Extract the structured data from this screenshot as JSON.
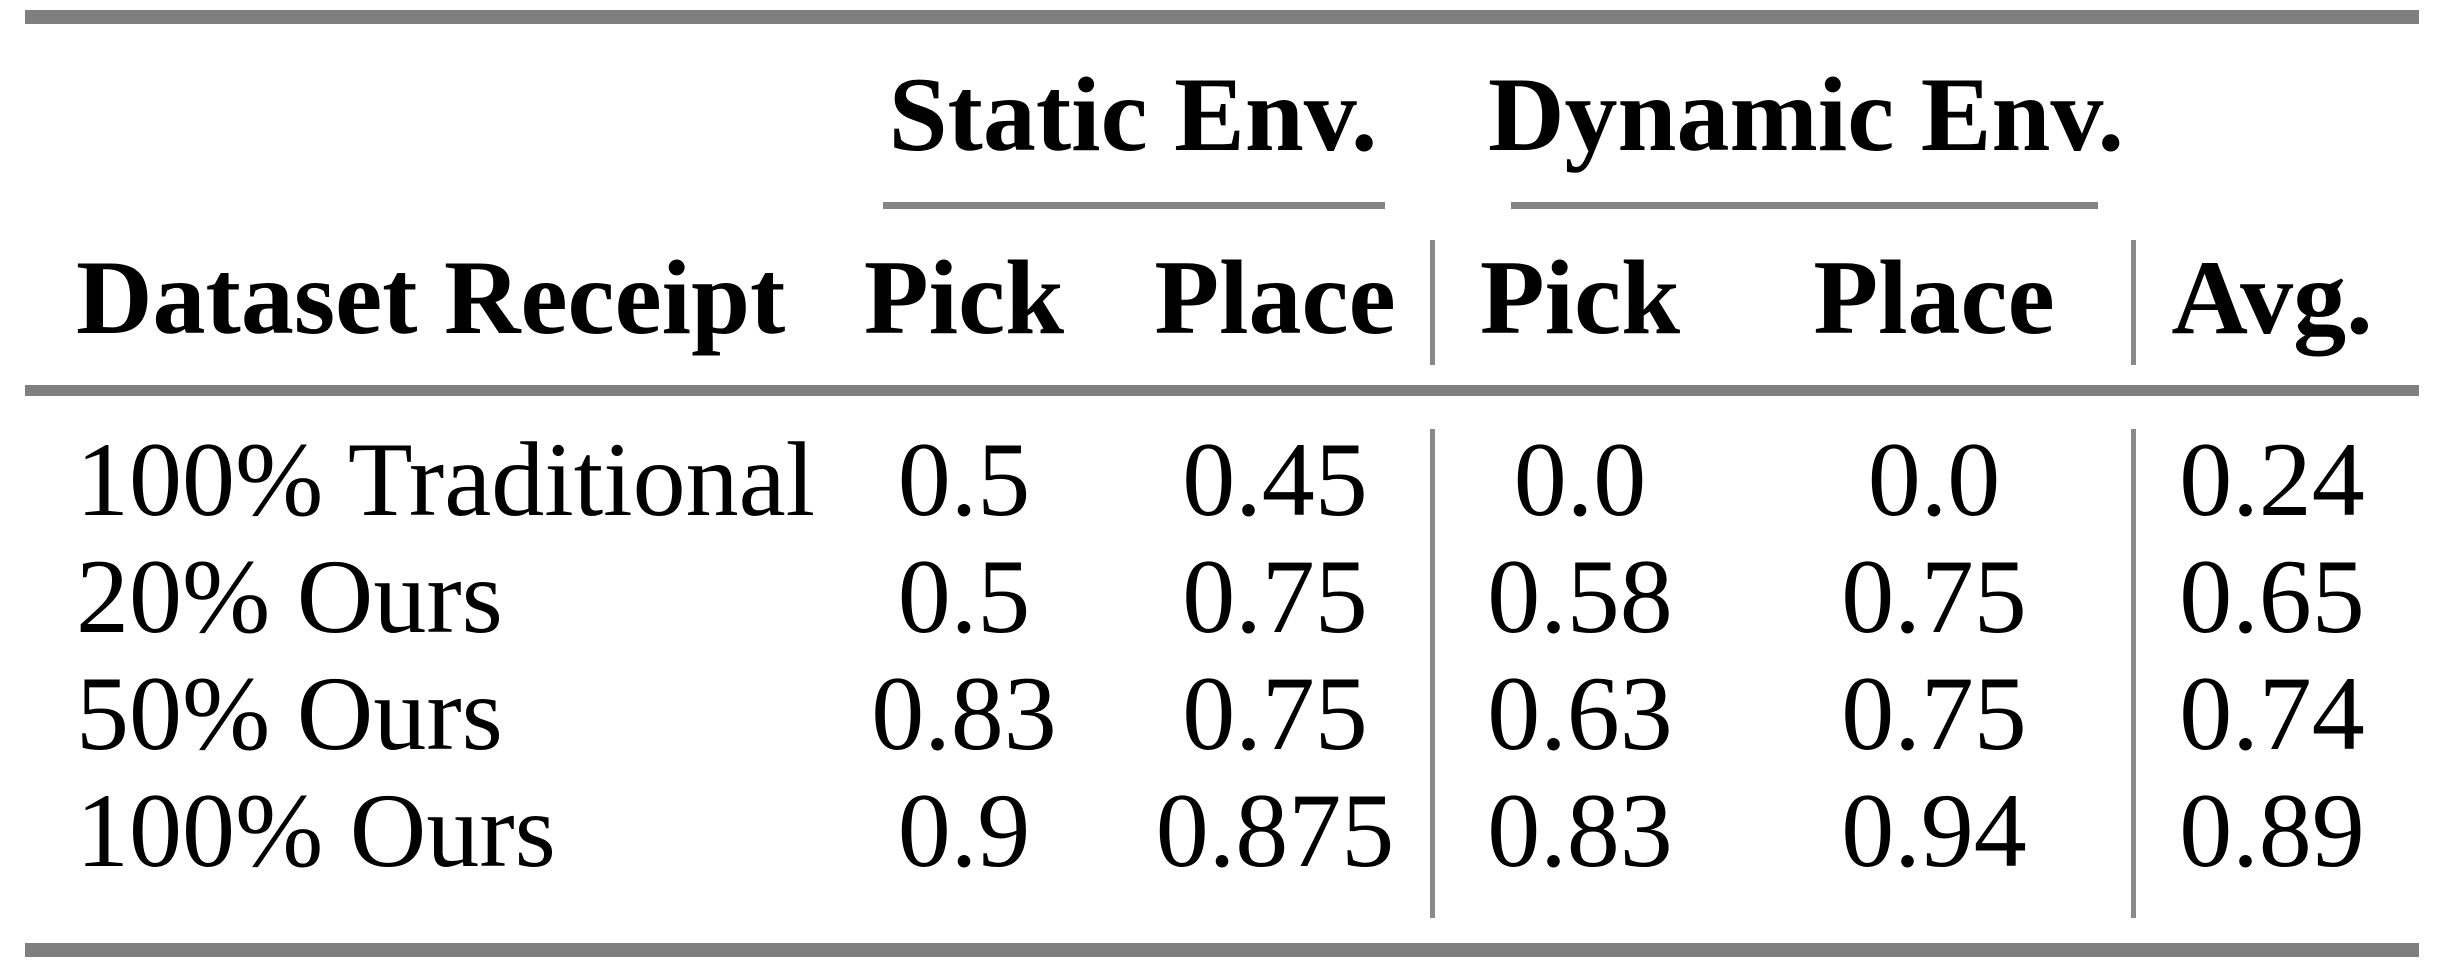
{
  "colors": {
    "rule_gray": "#7f7f7f",
    "separator_gray": "#8a8a8a",
    "text": "#000000",
    "background": "#ffffff"
  },
  "table": {
    "row_header": "Dataset Receipt",
    "avg_header": "Avg.",
    "groups": [
      {
        "label": "Static Env.",
        "columns": [
          "Pick",
          "Place"
        ]
      },
      {
        "label": "Dynamic Env.",
        "columns": [
          "Pick",
          "Place"
        ]
      }
    ],
    "rows": [
      {
        "label": "100% Traditional",
        "values": [
          "0.5",
          "0.45",
          "0.0",
          "0.0",
          "0.24"
        ]
      },
      {
        "label": "20% Ours",
        "values": [
          "0.5",
          "0.75",
          "0.58",
          "0.75",
          "0.65"
        ]
      },
      {
        "label": "50% Ours",
        "values": [
          "0.83",
          "0.75",
          "0.63",
          "0.75",
          "0.74"
        ]
      },
      {
        "label": "100% Ours",
        "values": [
          "0.9",
          "0.875",
          "0.83",
          "0.94",
          "0.89"
        ]
      }
    ]
  },
  "chart_data": {
    "type": "table",
    "title": "",
    "column_groups": [
      "Static Env.",
      "Static Env.",
      "Dynamic Env.",
      "Dynamic Env.",
      ""
    ],
    "columns": [
      "Dataset Receipt",
      "Pick",
      "Place",
      "Pick",
      "Place",
      "Avg."
    ],
    "rows": [
      [
        "100% Traditional",
        0.5,
        0.45,
        0.0,
        0.0,
        0.24
      ],
      [
        "20% Ours",
        0.5,
        0.75,
        0.58,
        0.75,
        0.65
      ],
      [
        "50% Ours",
        0.83,
        0.75,
        0.63,
        0.75,
        0.74
      ],
      [
        "100% Ours",
        0.9,
        0.875,
        0.83,
        0.94,
        0.89
      ]
    ]
  }
}
